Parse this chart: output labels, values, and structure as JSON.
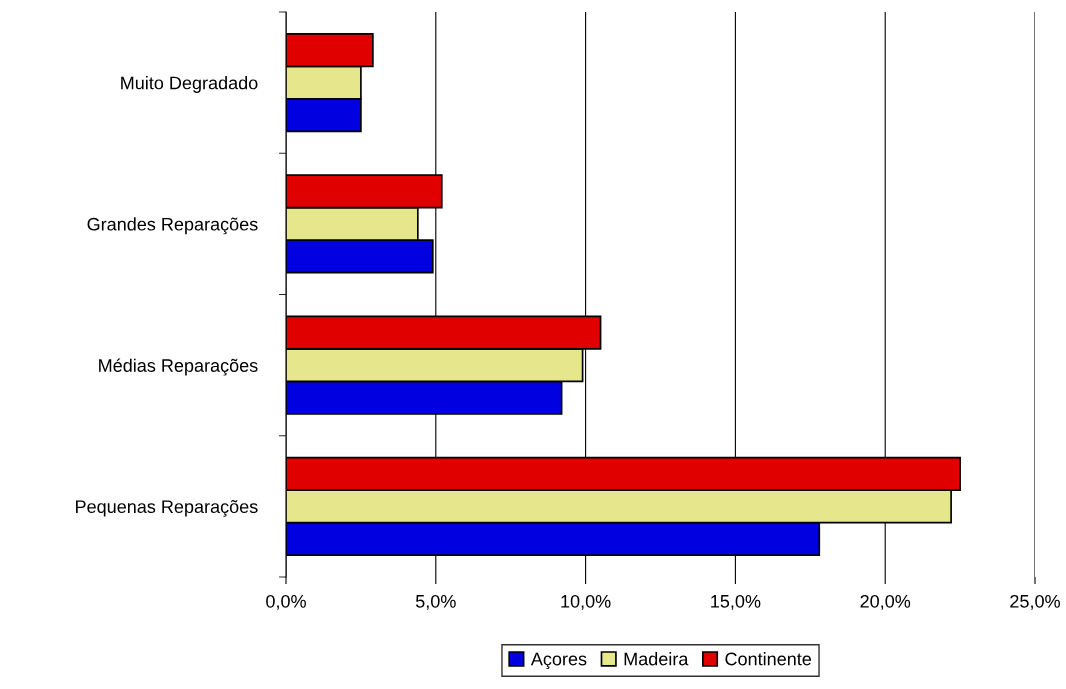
{
  "chart_data": {
    "type": "bar",
    "orientation": "horizontal",
    "categories": [
      "Muito Degradado",
      "Grandes Reparações",
      "Médias Reparações",
      "Pequenas Reparações"
    ],
    "series": [
      {
        "name": "Açores",
        "color": "#0000e0",
        "values": [
          2.5,
          4.9,
          9.2,
          17.8
        ]
      },
      {
        "name": "Madeira",
        "color": "#e6e68c",
        "values": [
          2.5,
          4.4,
          9.9,
          22.2
        ]
      },
      {
        "name": "Continente",
        "color": "#e00000",
        "values": [
          2.9,
          5.2,
          10.5,
          22.5
        ]
      }
    ],
    "xlim": [
      0,
      25
    ],
    "xticks": [
      {
        "value": 0,
        "label": "0,0%"
      },
      {
        "value": 5,
        "label": "5,0%"
      },
      {
        "value": 10,
        "label": "10,0%"
      },
      {
        "value": 15,
        "label": "15,0%"
      },
      {
        "value": 20,
        "label": "20,0%"
      },
      {
        "value": 25,
        "label": "25,0%"
      }
    ],
    "grid": "x",
    "legend": "bottom"
  }
}
